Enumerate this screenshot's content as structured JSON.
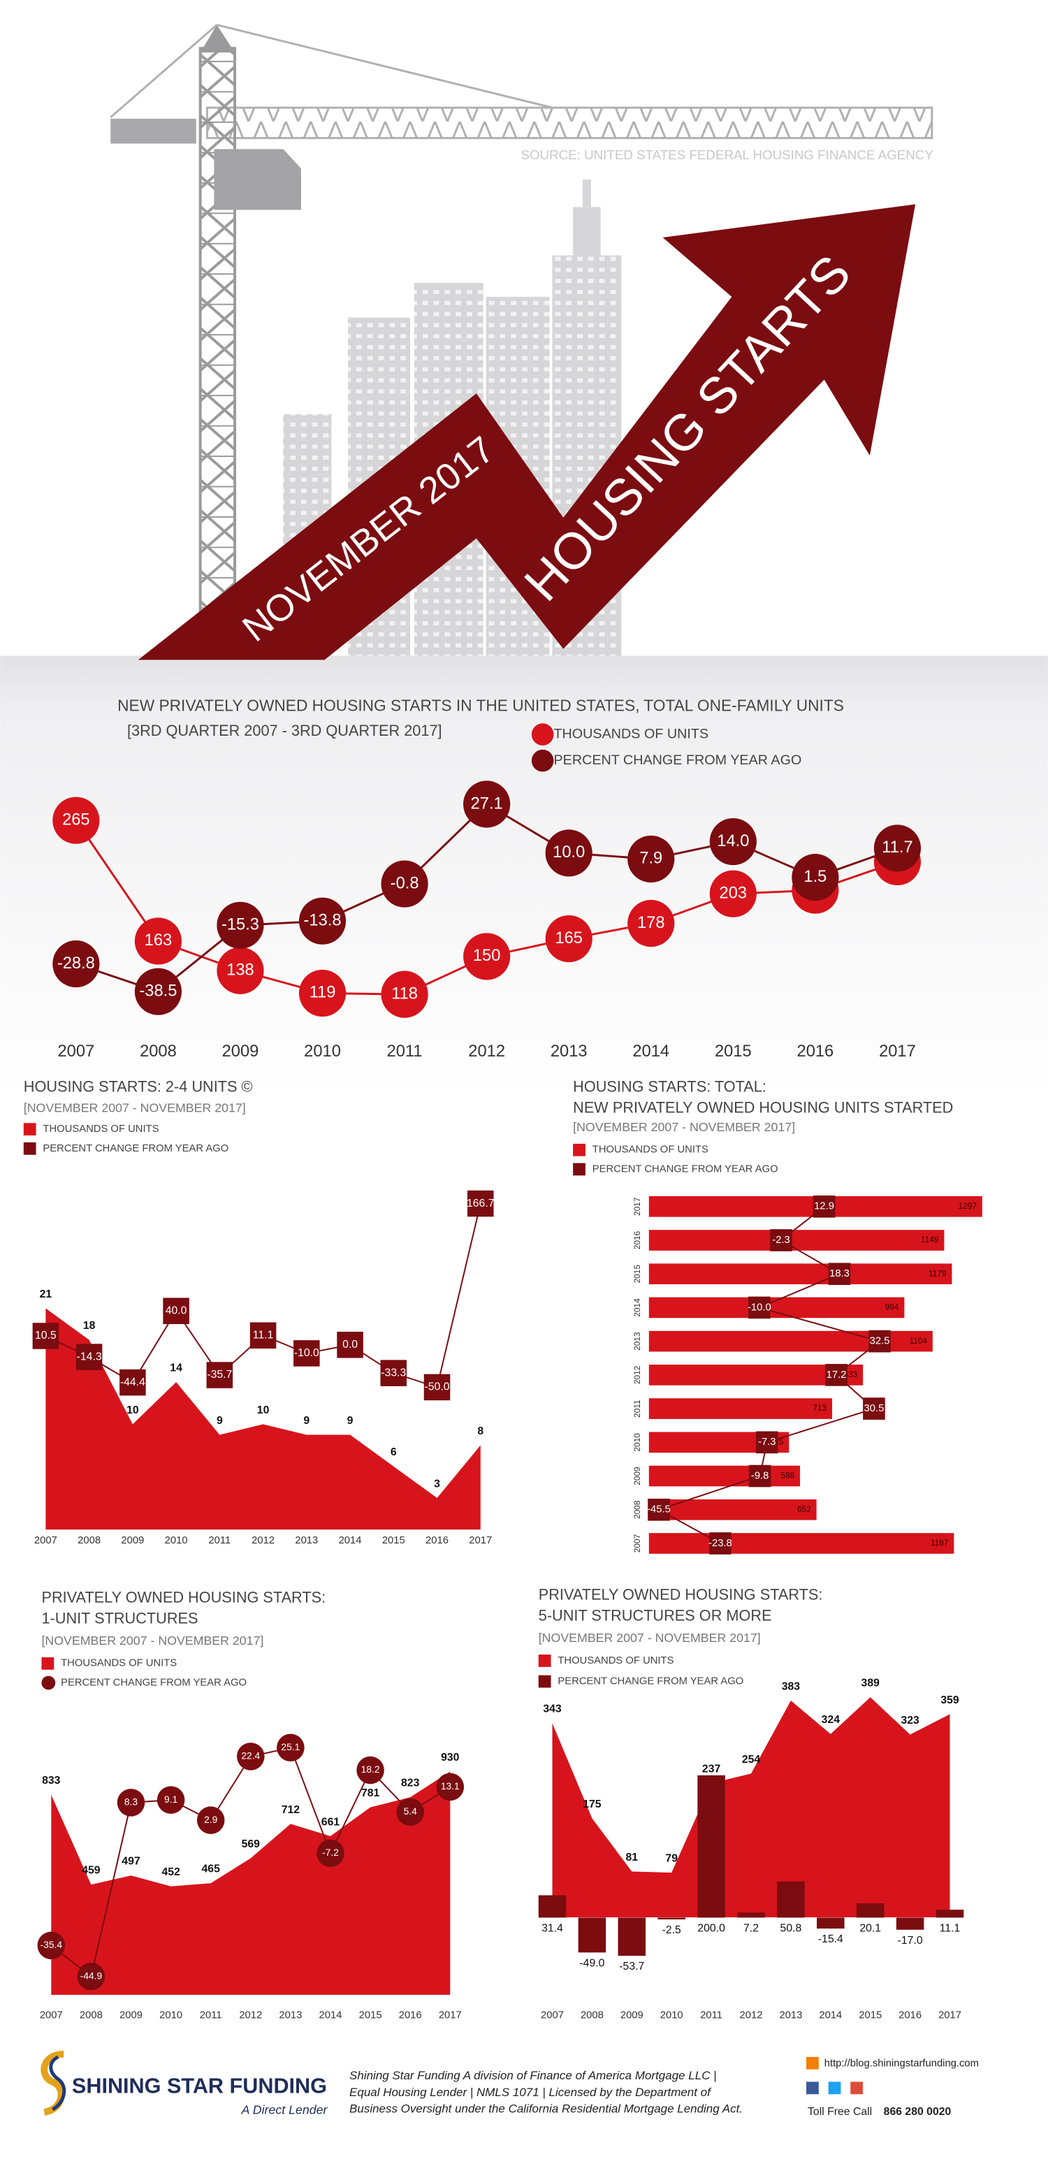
{
  "header": {
    "source": "SOURCE: UNITED STATES FEDERAL HOUSING FINANCE AGENCY",
    "date": "NOVEMBER 2017",
    "title": "HOUSING STARTS"
  },
  "chart_data": [
    {
      "type": "line",
      "title": "NEW PRIVATELY OWNED HOUSING STARTS IN THE UNITED STATES, TOTAL ONE-FAMILY UNITS",
      "subtitle": "[3RD QUARTER 2007 - 3RD QUARTER 2017]",
      "categories": [
        "2007",
        "2008",
        "2009",
        "2010",
        "2011",
        "2012",
        "2013",
        "2014",
        "2015",
        "2016",
        "2017"
      ],
      "series": [
        {
          "name": "THOUSANDS OF UNITS",
          "color": "#d7141c",
          "kind": "line",
          "values": [
            265,
            163,
            138,
            119,
            118,
            150,
            165,
            178,
            203,
            206,
            230
          ]
        },
        {
          "name": "PERCENT CHANGE FROM YEAR AGO",
          "color": "#7b0c10",
          "kind": "line",
          "axis": "y2",
          "values": [
            -28.8,
            -38.5,
            -15.3,
            -13.8,
            -0.8,
            27.1,
            10,
            7.9,
            14,
            1.5,
            11.7
          ],
          "value_labels": [
            "-28.8",
            "-38.5",
            "-15.3",
            "-13.8",
            "-0.8",
            "27.1",
            "10.0",
            "7.9",
            "14.0",
            "1.5",
            "11.7"
          ]
        }
      ],
      "ylim": [
        95,
        305
      ],
      "y2lim": [
        -49,
        38
      ]
    },
    {
      "type": "area",
      "title": "HOUSING STARTS: 2-4 UNITS ©",
      "period": "[NOVEMBER 2007 - NOVEMBER 2017]",
      "categories": [
        "2007",
        "2008",
        "2009",
        "2010",
        "2011",
        "2012",
        "2013",
        "2014",
        "2015",
        "2016",
        "2017"
      ],
      "series": [
        {
          "name": "THOUSANDS OF UNITS",
          "color": "#d7141c",
          "kind": "area",
          "values": [
            21,
            18,
            10,
            14,
            9,
            10,
            9,
            9,
            6,
            3,
            8
          ]
        },
        {
          "name": "PERCENT CHANGE FROM YEAR AGO",
          "color": "#7b0c10",
          "kind": "line",
          "axis": "y2",
          "values": [
            10.5,
            -14.3,
            -44.4,
            40,
            -35.7,
            11.1,
            -10,
            0,
            -33.3,
            -50,
            166.7
          ],
          "value_labels": [
            "10.5",
            "-14.3",
            "-44.4",
            "40.0",
            "-35.7",
            "11.1",
            "-10.0",
            "0.0",
            "-33.3",
            "-50.0",
            "166.7"
          ]
        }
      ],
      "ylim": [
        0,
        32.5
      ],
      "y2lim": [
        -218,
        186
      ]
    },
    {
      "type": "bar",
      "title": "HOUSING STARTS: TOTAL:",
      "subtitle": "NEW PRIVATELY OWNED HOUSING UNITS STARTED",
      "period": "[NOVEMBER 2007 - NOVEMBER 2017]",
      "categories": [
        "2017",
        "2016",
        "2015",
        "2014",
        "2013",
        "2012",
        "2011",
        "2010",
        "2009",
        "2008",
        "2007"
      ],
      "series": [
        {
          "name": "THOUSANDS OF UNITS",
          "color": "#d7141c",
          "kind": "bar",
          "values": [
            1297,
            1149,
            1179,
            994,
            1104,
            833,
            713,
            545,
            588,
            652,
            1187
          ]
        },
        {
          "name": "PERCENT CHANGE FROM YEAR AGO",
          "color": "#7b0c10",
          "kind": "line",
          "axis": "x2",
          "values": [
            12.9,
            -2.3,
            18.3,
            -10,
            32.5,
            17.2,
            30.5,
            -7.3,
            -9.8,
            -45.5,
            -23.8
          ],
          "value_labels": [
            "12.9",
            "-2.3",
            "18.3",
            "-10.0",
            "32.5",
            "17.2",
            "30.5",
            "-7.3",
            "-9.8",
            "-45.5",
            "-23.8"
          ]
        }
      ],
      "xlim": [
        0,
        1300
      ],
      "x2lim": [
        -49,
        69
      ]
    },
    {
      "type": "area",
      "title": "PRIVATELY OWNED HOUSING STARTS:",
      "subtitle": "1-UNIT STRUCTURES",
      "period": "[NOVEMBER 2007 - NOVEMBER 2017]",
      "categories": [
        "2007",
        "2008",
        "2009",
        "2010",
        "2011",
        "2012",
        "2013",
        "2014",
        "2015",
        "2016",
        "2017"
      ],
      "series": [
        {
          "name": "THOUSANDS OF UNITS",
          "color": "#d7141c",
          "kind": "area",
          "values": [
            833,
            459,
            497,
            452,
            465,
            569,
            712,
            661,
            781,
            823,
            930
          ]
        },
        {
          "name": "PERCENT CHANGE FROM YEAR AGO",
          "color": "#7b0c10",
          "kind": "line",
          "axis": "y2",
          "values": [
            -35.4,
            -44.9,
            8.3,
            9.1,
            2.9,
            22.4,
            25.1,
            -7.2,
            18.2,
            5.4,
            13.1
          ]
        }
      ],
      "ylim": [
        0,
        1035
      ],
      "y2lim": [
        -50.5,
        25.5
      ]
    },
    {
      "type": "area",
      "title": "PRIVATELY OWNED HOUSING STARTS:",
      "subtitle": "5-UNIT STRUCTURES OR MORE",
      "period": "[NOVEMBER 2007 - NOVEMBER 2017]",
      "categories": [
        "2007",
        "2008",
        "2009",
        "2010",
        "2011",
        "2012",
        "2013",
        "2014",
        "2015",
        "2016",
        "2017"
      ],
      "series": [
        {
          "name": "THOUSANDS OF UNITS",
          "color": "#d7141c",
          "kind": "area",
          "values": [
            343,
            175,
            81,
            79,
            237,
            254,
            383,
            324,
            389,
            323,
            359
          ]
        },
        {
          "name": "PERCENT CHANGE FROM YEAR AGO",
          "color": "#7b0c10",
          "kind": "bar",
          "axis": "y2",
          "values": [
            31.4,
            -49,
            -53.7,
            -2.5,
            200,
            7.2,
            50.8,
            -15.4,
            20.1,
            -17,
            11.1
          ],
          "value_labels": [
            "31.4",
            "-49.0",
            "-53.7",
            "-2.5",
            "200.0",
            "7.2",
            "50.8",
            "-15.4",
            "20.1",
            "-17.0",
            "11.1"
          ]
        }
      ],
      "ylim": [
        -76,
        412
      ],
      "y2lim": [
        -60,
        328
      ]
    }
  ],
  "footer": {
    "brand": "SHINING STAR FUNDING",
    "tagline": "A Direct Lender",
    "disclaimer": [
      "Shining Star Funding A division of Finance of America Mortgage LLC |",
      "Equal Housing Lender | NMLS 1071 | Licensed by the Department of",
      "Business Oversight under the California Residential Mortgage Lending Act."
    ],
    "url": "http://blog.shiningstarfunding.com",
    "phone_label": "Toll Free Call",
    "phone": "866 280 0020"
  }
}
